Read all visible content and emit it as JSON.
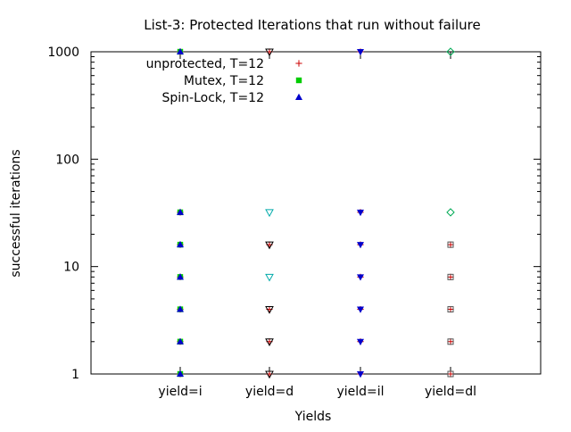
{
  "chart_data": {
    "type": "scatter",
    "title": "List-3: Protected Iterations that run without failure",
    "xlabel": "Yields",
    "ylabel": "successful iterations",
    "categories": [
      "yield=i",
      "yield=d",
      "yield=il",
      "yield=dl"
    ],
    "y_scale": "log",
    "ylim": [
      1,
      1000
    ],
    "y_ticks": [
      1,
      10,
      100,
      1000
    ],
    "y_tick_labels": [
      "1",
      "10",
      "100",
      "1000"
    ],
    "grid": false,
    "legend_position": "top-left",
    "series": [
      {
        "name": "unprotected, T=12",
        "marker": "plus",
        "color": "#cc0000",
        "points": [
          {
            "x": "yield=i",
            "y": 1
          },
          {
            "x": "yield=i",
            "y": 2
          },
          {
            "x": "yield=i",
            "y": 4
          },
          {
            "x": "yield=i",
            "y": 8
          },
          {
            "x": "yield=i",
            "y": 16
          },
          {
            "x": "yield=i",
            "y": 32
          },
          {
            "x": "yield=i",
            "y": 1000
          },
          {
            "x": "yield=d",
            "y": 1
          },
          {
            "x": "yield=d",
            "y": 2
          },
          {
            "x": "yield=d",
            "y": 4
          },
          {
            "x": "yield=d",
            "y": 16
          },
          {
            "x": "yield=d",
            "y": 1000
          },
          {
            "x": "yield=il",
            "y": 1
          },
          {
            "x": "yield=il",
            "y": 2
          },
          {
            "x": "yield=il",
            "y": 4
          },
          {
            "x": "yield=il",
            "y": 8
          },
          {
            "x": "yield=il",
            "y": 16
          },
          {
            "x": "yield=il",
            "y": 32
          },
          {
            "x": "yield=il",
            "y": 1000
          },
          {
            "x": "yield=dl",
            "y": 1
          },
          {
            "x": "yield=dl",
            "y": 2
          },
          {
            "x": "yield=dl",
            "y": 4
          },
          {
            "x": "yield=dl",
            "y": 8
          },
          {
            "x": "yield=dl",
            "y": 16
          }
        ]
      },
      {
        "name": "Mutex, T=12",
        "marker": "square",
        "color": "#00cc00",
        "points": [
          {
            "x": "yield=i",
            "y": 1
          },
          {
            "x": "yield=i",
            "y": 2
          },
          {
            "x": "yield=i",
            "y": 4
          },
          {
            "x": "yield=i",
            "y": 8
          },
          {
            "x": "yield=i",
            "y": 16
          },
          {
            "x": "yield=i",
            "y": 32
          },
          {
            "x": "yield=i",
            "y": 1000
          }
        ]
      },
      {
        "name": "Spin-Lock, T=12",
        "marker": "triangle-up",
        "color": "#0000cc",
        "points": [
          {
            "x": "yield=i",
            "y": 1
          },
          {
            "x": "yield=i",
            "y": 2
          },
          {
            "x": "yield=i",
            "y": 4
          },
          {
            "x": "yield=i",
            "y": 8
          },
          {
            "x": "yield=i",
            "y": 16
          },
          {
            "x": "yield=i",
            "y": 32
          },
          {
            "x": "yield=i",
            "y": 1000
          }
        ]
      },
      {
        "marker": "triangle-down-open",
        "color": "#000000",
        "points": [
          {
            "x": "yield=d",
            "y": 1
          },
          {
            "x": "yield=d",
            "y": 2
          },
          {
            "x": "yield=d",
            "y": 4
          },
          {
            "x": "yield=d",
            "y": 16
          },
          {
            "x": "yield=d",
            "y": 1000
          }
        ]
      },
      {
        "marker": "triangle-down-open",
        "color": "#00aaaa",
        "points": [
          {
            "x": "yield=d",
            "y": 8
          },
          {
            "x": "yield=d",
            "y": 32
          }
        ]
      },
      {
        "marker": "triangle-down",
        "color": "#0000cc",
        "points": [
          {
            "x": "yield=il",
            "y": 1
          },
          {
            "x": "yield=il",
            "y": 2
          },
          {
            "x": "yield=il",
            "y": 4
          },
          {
            "x": "yield=il",
            "y": 8
          },
          {
            "x": "yield=il",
            "y": 16
          },
          {
            "x": "yield=il",
            "y": 32
          },
          {
            "x": "yield=il",
            "y": 1000
          }
        ]
      },
      {
        "marker": "square-open",
        "color": "#555555",
        "points": [
          {
            "x": "yield=dl",
            "y": 1
          },
          {
            "x": "yield=dl",
            "y": 2
          },
          {
            "x": "yield=dl",
            "y": 4
          },
          {
            "x": "yield=dl",
            "y": 8
          },
          {
            "x": "yield=dl",
            "y": 16
          }
        ]
      },
      {
        "marker": "diamond-open",
        "color": "#00aa55",
        "points": [
          {
            "x": "yield=dl",
            "y": 32
          },
          {
            "x": "yield=dl",
            "y": 1000
          }
        ]
      }
    ]
  }
}
